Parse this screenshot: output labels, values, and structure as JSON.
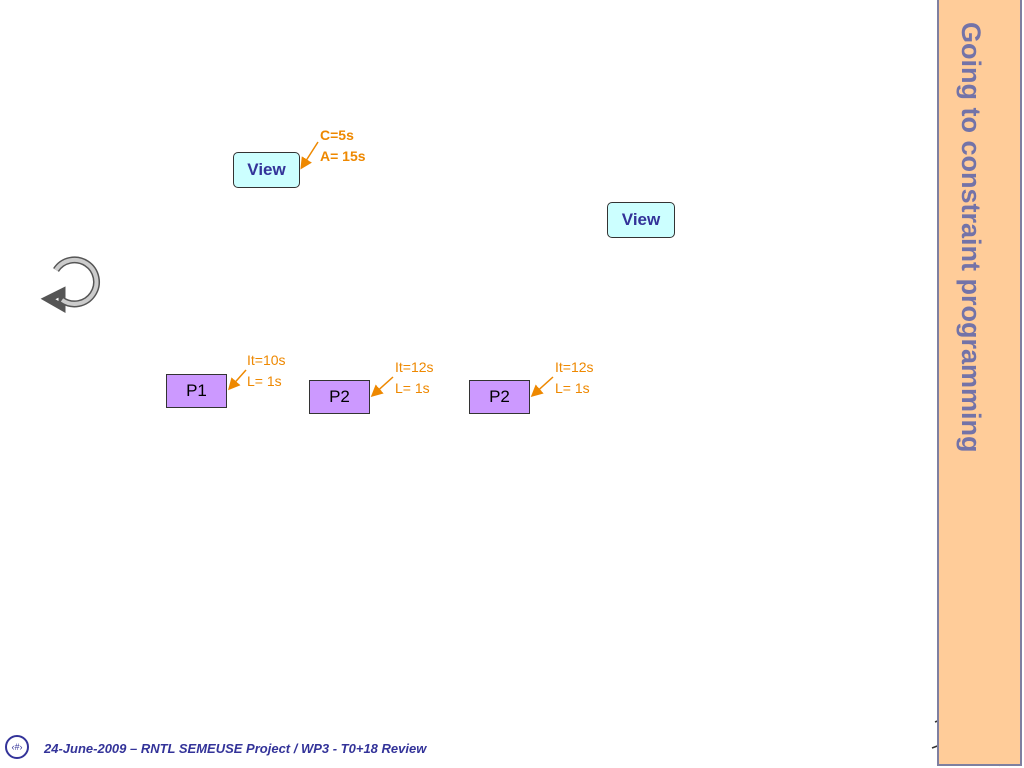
{
  "sidebar_title": "Going to constraint programming",
  "views": [
    {
      "label": "View",
      "annotation": [
        "C=5s",
        "A= 15s"
      ]
    },
    {
      "label": "View"
    }
  ],
  "processes": [
    {
      "label": "P1",
      "annotation": [
        "It=10s",
        "L= 1s"
      ]
    },
    {
      "label": "P2",
      "annotation": [
        "It=12s",
        "L= 1s"
      ]
    },
    {
      "label": "P2",
      "annotation": [
        "It=12s",
        "L= 1s"
      ]
    }
  ],
  "footer": {
    "page": "‹#›",
    "text": "24-June-2009 – RNTL SEMEUSE Project / WP3 - T0+18 Review"
  }
}
